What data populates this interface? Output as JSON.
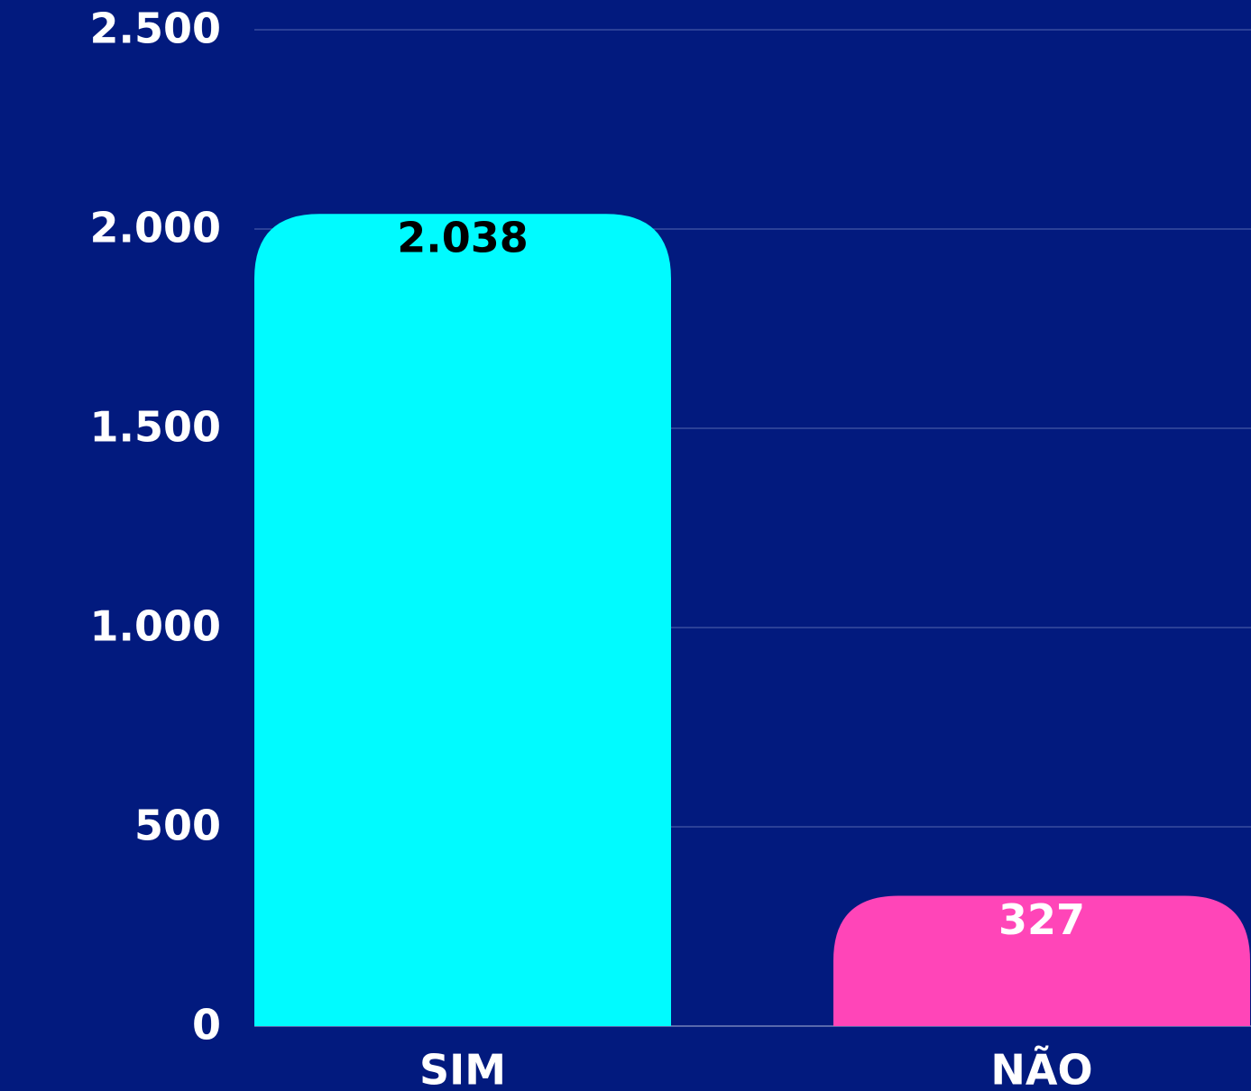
{
  "chart_data": {
    "type": "bar",
    "categories": [
      "SIM",
      "NÃO"
    ],
    "values": [
      2038,
      327
    ],
    "value_labels": [
      "2.038",
      "327"
    ],
    "colors": [
      "#00fbff",
      "#ff45b8"
    ],
    "value_label_colors": [
      "#000000",
      "#ffffff"
    ],
    "ylim": [
      0,
      2500
    ],
    "yticks": [
      0,
      500,
      {
        "value": 1000,
        "label": "1.000"
      },
      {
        "value": 1500,
        "label": "1.500"
      },
      {
        "value": 2000,
        "label": "2.000"
      },
      {
        "value": 2500,
        "label": "2.500"
      }
    ],
    "grid": true
  }
}
